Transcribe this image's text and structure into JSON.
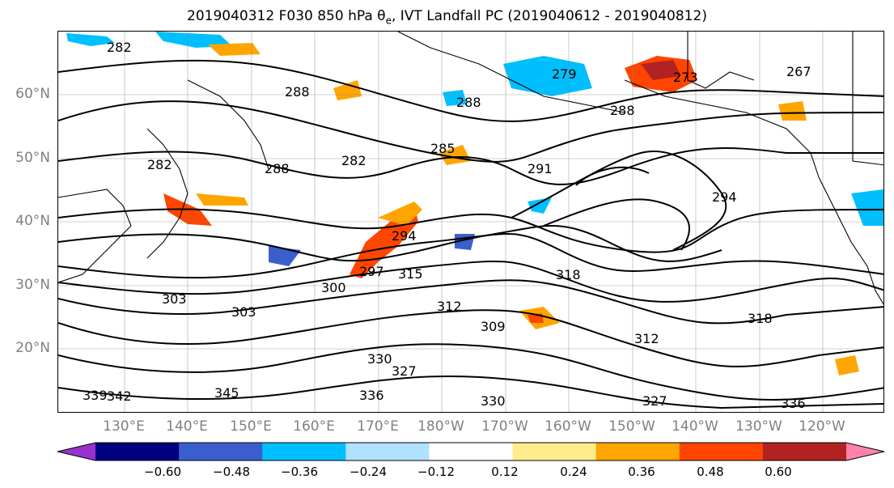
{
  "title": "2019040312 F030 850 hPa θ",
  "title_sub": "e",
  "title_rest": ", IVT Landfall PC (2019040612 - 2019040812)",
  "lat_labels": [
    "60°N",
    "50°N",
    "40°N",
    "30°N",
    "20°N"
  ],
  "lon_labels": [
    "130°E",
    "140°E",
    "150°E",
    "160°E",
    "170°E",
    "180°W",
    "170°W",
    "160°W",
    "150°W",
    "140°W",
    "130°W",
    "120°W"
  ],
  "contour_labels": [
    "282",
    "282",
    "288",
    "288",
    "279",
    "273",
    "267",
    "288",
    "288",
    "285",
    "291",
    "282",
    "294",
    "294",
    "297",
    "300",
    "303",
    "303",
    "318",
    "312",
    "309",
    "312",
    "318",
    "315",
    "330",
    "327",
    "339",
    "342",
    "345",
    "336",
    "330",
    "327",
    "336"
  ],
  "colorbar": {
    "ticks": [
      "−0.60",
      "−0.48",
      "−0.36",
      "−0.24",
      "−0.12",
      "0.12",
      "0.24",
      "0.36",
      "0.48",
      "0.60"
    ],
    "colors": [
      "#9932cc",
      "#000080",
      "#3a5fcd",
      "#00bfff",
      "#b0e2ff",
      "#ffffff",
      "#ffec8b",
      "#ffa500",
      "#ff4500",
      "#b22222",
      "#ff82ab"
    ]
  }
}
